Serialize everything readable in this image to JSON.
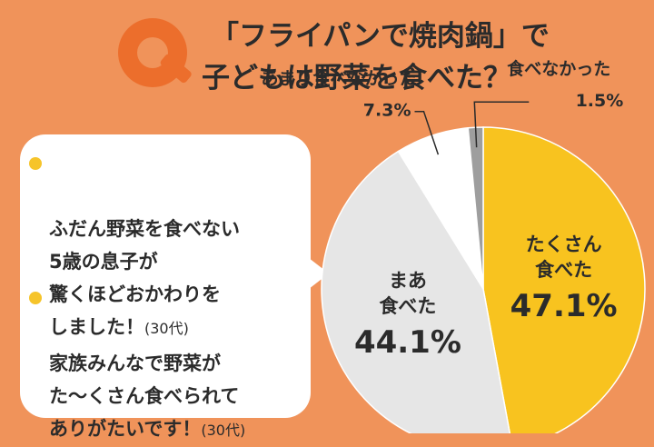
{
  "header": {
    "q_letter": "Q",
    "title_line_1": "「フライパンで焼肉鍋」で",
    "title_line_2": "子どもは野菜を食べた？"
  },
  "comments": [
    {
      "text": "ふだん野菜を食べない\n5歳の息子が\n驚くほどおかわりを\nしました！",
      "age": "(30代)"
    },
    {
      "text": "家族みんなで野菜が\nた〜くさん食べられて\nありがたいです！",
      "age": "(30代)"
    }
  ],
  "colors": {
    "background": "#f0935a",
    "q_logo": "#ec6e2c",
    "bullet": "#f6c42a",
    "slice_lots": "#f8c31f",
    "slice_somewhat": "#e6e6e6",
    "slice_not_much": "#ffffff",
    "slice_none": "#9e9e9e"
  },
  "chart_data": {
    "type": "pie",
    "start": "12 o'clock",
    "direction": "clockwise",
    "slices": [
      {
        "label": "たくさん\n食べた",
        "value": 47.1,
        "display": "47.1%",
        "color": "#f8c31f",
        "label_position": "inside"
      },
      {
        "label": "まあ\n食べた",
        "value": 44.1,
        "display": "44.1%",
        "color": "#e6e6e6",
        "label_position": "inside"
      },
      {
        "label": "あまり食べなかった",
        "value": 7.3,
        "display": "7.3%",
        "color": "#ffffff",
        "label_position": "outside-top-left"
      },
      {
        "label": "食べなかった",
        "value": 1.5,
        "display": "1.5%",
        "color": "#9e9e9e",
        "label_position": "outside-top-right"
      }
    ]
  }
}
